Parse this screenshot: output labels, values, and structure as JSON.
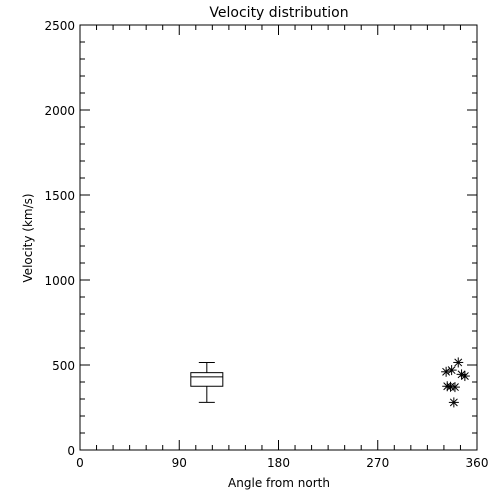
{
  "chart_data": {
    "type": "scatter",
    "title": "Velocity distribution",
    "xlabel": "Angle from north",
    "ylabel": "Velocity (km/s)",
    "xlim": [
      0,
      360
    ],
    "ylim": [
      0,
      2500
    ],
    "xticks": [
      0,
      90,
      180,
      270,
      360
    ],
    "yticks": [
      0,
      500,
      1000,
      1500,
      2000,
      2500
    ],
    "grid": false,
    "legend": false,
    "box": {
      "x": 115,
      "whisker_low": 280,
      "q1": 375,
      "median": 430,
      "q3": 455,
      "whisker_high": 515
    },
    "points": [
      {
        "x": 332,
        "y": 460
      },
      {
        "x": 337,
        "y": 470
      },
      {
        "x": 343,
        "y": 515
      },
      {
        "x": 346,
        "y": 445
      },
      {
        "x": 349,
        "y": 435
      },
      {
        "x": 333,
        "y": 375
      },
      {
        "x": 336,
        "y": 372
      },
      {
        "x": 340,
        "y": 370
      },
      {
        "x": 339,
        "y": 280
      }
    ],
    "colors": {
      "line": "#000000",
      "background": "#ffffff"
    }
  }
}
